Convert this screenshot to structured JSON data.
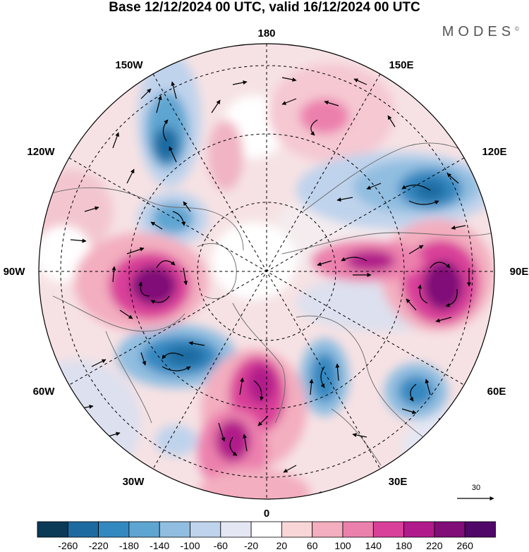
{
  "title": "Base 12/12/2024 00 UTC, valid 16/12/2024 00 UTC",
  "brand": {
    "name": "MODES",
    "mark": "©"
  },
  "map": {
    "projection": "north polar stereographic",
    "field": "geopotential height anomaly (shaded) with wind vectors",
    "longitude_labels": [
      {
        "id": "lon-180",
        "text": "180"
      },
      {
        "id": "lon-150e",
        "text": "150E"
      },
      {
        "id": "lon-120e",
        "text": "120E"
      },
      {
        "id": "lon-90e",
        "text": "90E"
      },
      {
        "id": "lon-60e",
        "text": "60E"
      },
      {
        "id": "lon-30e",
        "text": "30E"
      },
      {
        "id": "lon-0",
        "text": "0"
      },
      {
        "id": "lon-30w",
        "text": "30W"
      },
      {
        "id": "lon-60w",
        "text": "60W"
      },
      {
        "id": "lon-90w",
        "text": "90W"
      },
      {
        "id": "lon-120w",
        "text": "120W"
      },
      {
        "id": "lon-150w",
        "text": "150W"
      }
    ],
    "reference_vector_label": "30"
  },
  "colorbar": {
    "labels": [
      "-260",
      "-220",
      "-180",
      "-140",
      "-100",
      "-60",
      "-20",
      "20",
      "60",
      "100",
      "140",
      "180",
      "220",
      "260"
    ],
    "colors": [
      "#0b3a57",
      "#1d6aa0",
      "#3488c0",
      "#5ea5d2",
      "#90bde0",
      "#bfd3ec",
      "#e4e7f3",
      "#ffffff",
      "#f8d6d8",
      "#f3aebf",
      "#ec80ad",
      "#d94099",
      "#b11a8a",
      "#800d78",
      "#4f0868"
    ]
  }
}
